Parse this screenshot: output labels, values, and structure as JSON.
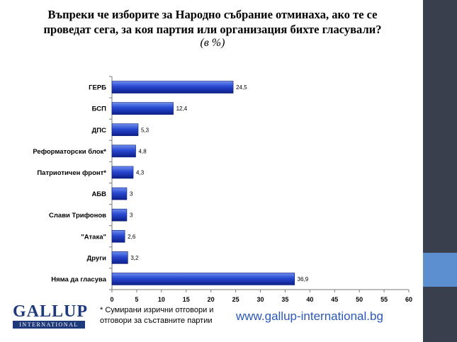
{
  "title": "Въпреки че изборите за Народно събрание отминаха, ако те се проведат сега, за коя партия или организация бихте гласували?",
  "subtitle": "(в %)",
  "chart_data": {
    "type": "bar",
    "orientation": "horizontal",
    "categories": [
      "ГЕРБ",
      "БСП",
      "ДПС",
      "Реформаторски блок*",
      "Патриотичен фронт*",
      "АБВ",
      "Слави Трифонов",
      "\"Атака\"",
      "Други",
      "Няма да гласува"
    ],
    "values": [
      24.5,
      12.4,
      5.3,
      4.8,
      4.3,
      3,
      3,
      2.6,
      3.2,
      36.9
    ],
    "value_labels": [
      "24,5",
      "12,4",
      "5,3",
      "4,8",
      "4,3",
      "3",
      "3",
      "2,6",
      "3,2",
      "36,9"
    ],
    "xlim": [
      0,
      60
    ],
    "xticks": [
      0,
      5,
      10,
      15,
      20,
      25,
      30,
      35,
      40,
      45,
      50,
      55,
      60
    ],
    "grid": false,
    "bar_color": "#1e3fbf"
  },
  "footer": {
    "logo_text": "GALLUP",
    "logo_subtext": "INTERNATIONAL",
    "footnote": "* Сумирани изрични отговори и отговори за съставните партии",
    "url": "www.gallup-international.bg"
  }
}
